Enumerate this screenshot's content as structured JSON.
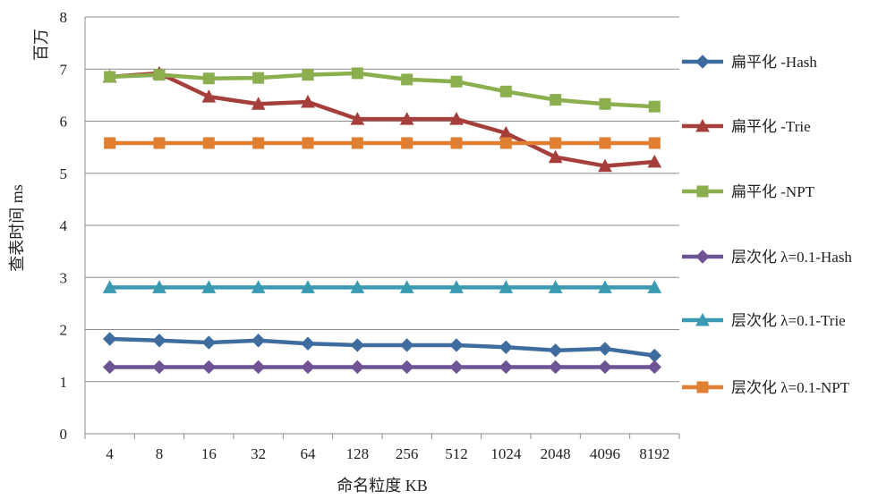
{
  "chart_data": {
    "type": "line",
    "title": "",
    "xlabel": "命名粒度 KB",
    "ylabel": "查表时间 ms",
    "yunit": "百万",
    "ylim": [
      0,
      8
    ],
    "yticks": [
      "0",
      "1",
      "2",
      "3",
      "4",
      "5",
      "6",
      "7",
      "8"
    ],
    "grid": "horizontal",
    "legend_position": "right",
    "categories": [
      "4",
      "8",
      "16",
      "32",
      "64",
      "128",
      "256",
      "512",
      "1024",
      "2048",
      "4096",
      "8192"
    ],
    "series": [
      {
        "name": "扁平化 -Hash",
        "color": "#3E6C9E",
        "marker": "diamond",
        "values": [
          1.82,
          1.79,
          1.75,
          1.79,
          1.73,
          1.7,
          1.7,
          1.7,
          1.66,
          1.6,
          1.63,
          1.5
        ]
      },
      {
        "name": "扁平化 -Trie",
        "color": "#A53F3B",
        "marker": "triangle",
        "values": [
          6.85,
          6.92,
          6.47,
          6.33,
          6.37,
          6.04,
          6.04,
          6.04,
          5.77,
          5.31,
          5.14,
          5.22
        ]
      },
      {
        "name": "扁平化 -NPT",
        "color": "#8BAF4E",
        "marker": "square",
        "values": [
          6.85,
          6.89,
          6.82,
          6.83,
          6.89,
          6.92,
          6.8,
          6.76,
          6.57,
          6.41,
          6.33,
          6.28
        ]
      },
      {
        "name": "层次化 λ=0.1-Hash",
        "color": "#6E5494",
        "marker": "diamond",
        "values": [
          1.28,
          1.28,
          1.28,
          1.28,
          1.28,
          1.28,
          1.28,
          1.28,
          1.28,
          1.28,
          1.28,
          1.28
        ]
      },
      {
        "name": "层次化 λ=0.1-Trie",
        "color": "#3A9AB1",
        "marker": "triangle",
        "values": [
          2.81,
          2.81,
          2.81,
          2.81,
          2.81,
          2.81,
          2.81,
          2.81,
          2.81,
          2.81,
          2.81,
          2.81
        ]
      },
      {
        "name": "层次化 λ=0.1-NPT",
        "color": "#E07E31",
        "marker": "square",
        "values": [
          5.58,
          5.58,
          5.58,
          5.58,
          5.58,
          5.58,
          5.58,
          5.58,
          5.58,
          5.58,
          5.58,
          5.58
        ]
      }
    ]
  }
}
